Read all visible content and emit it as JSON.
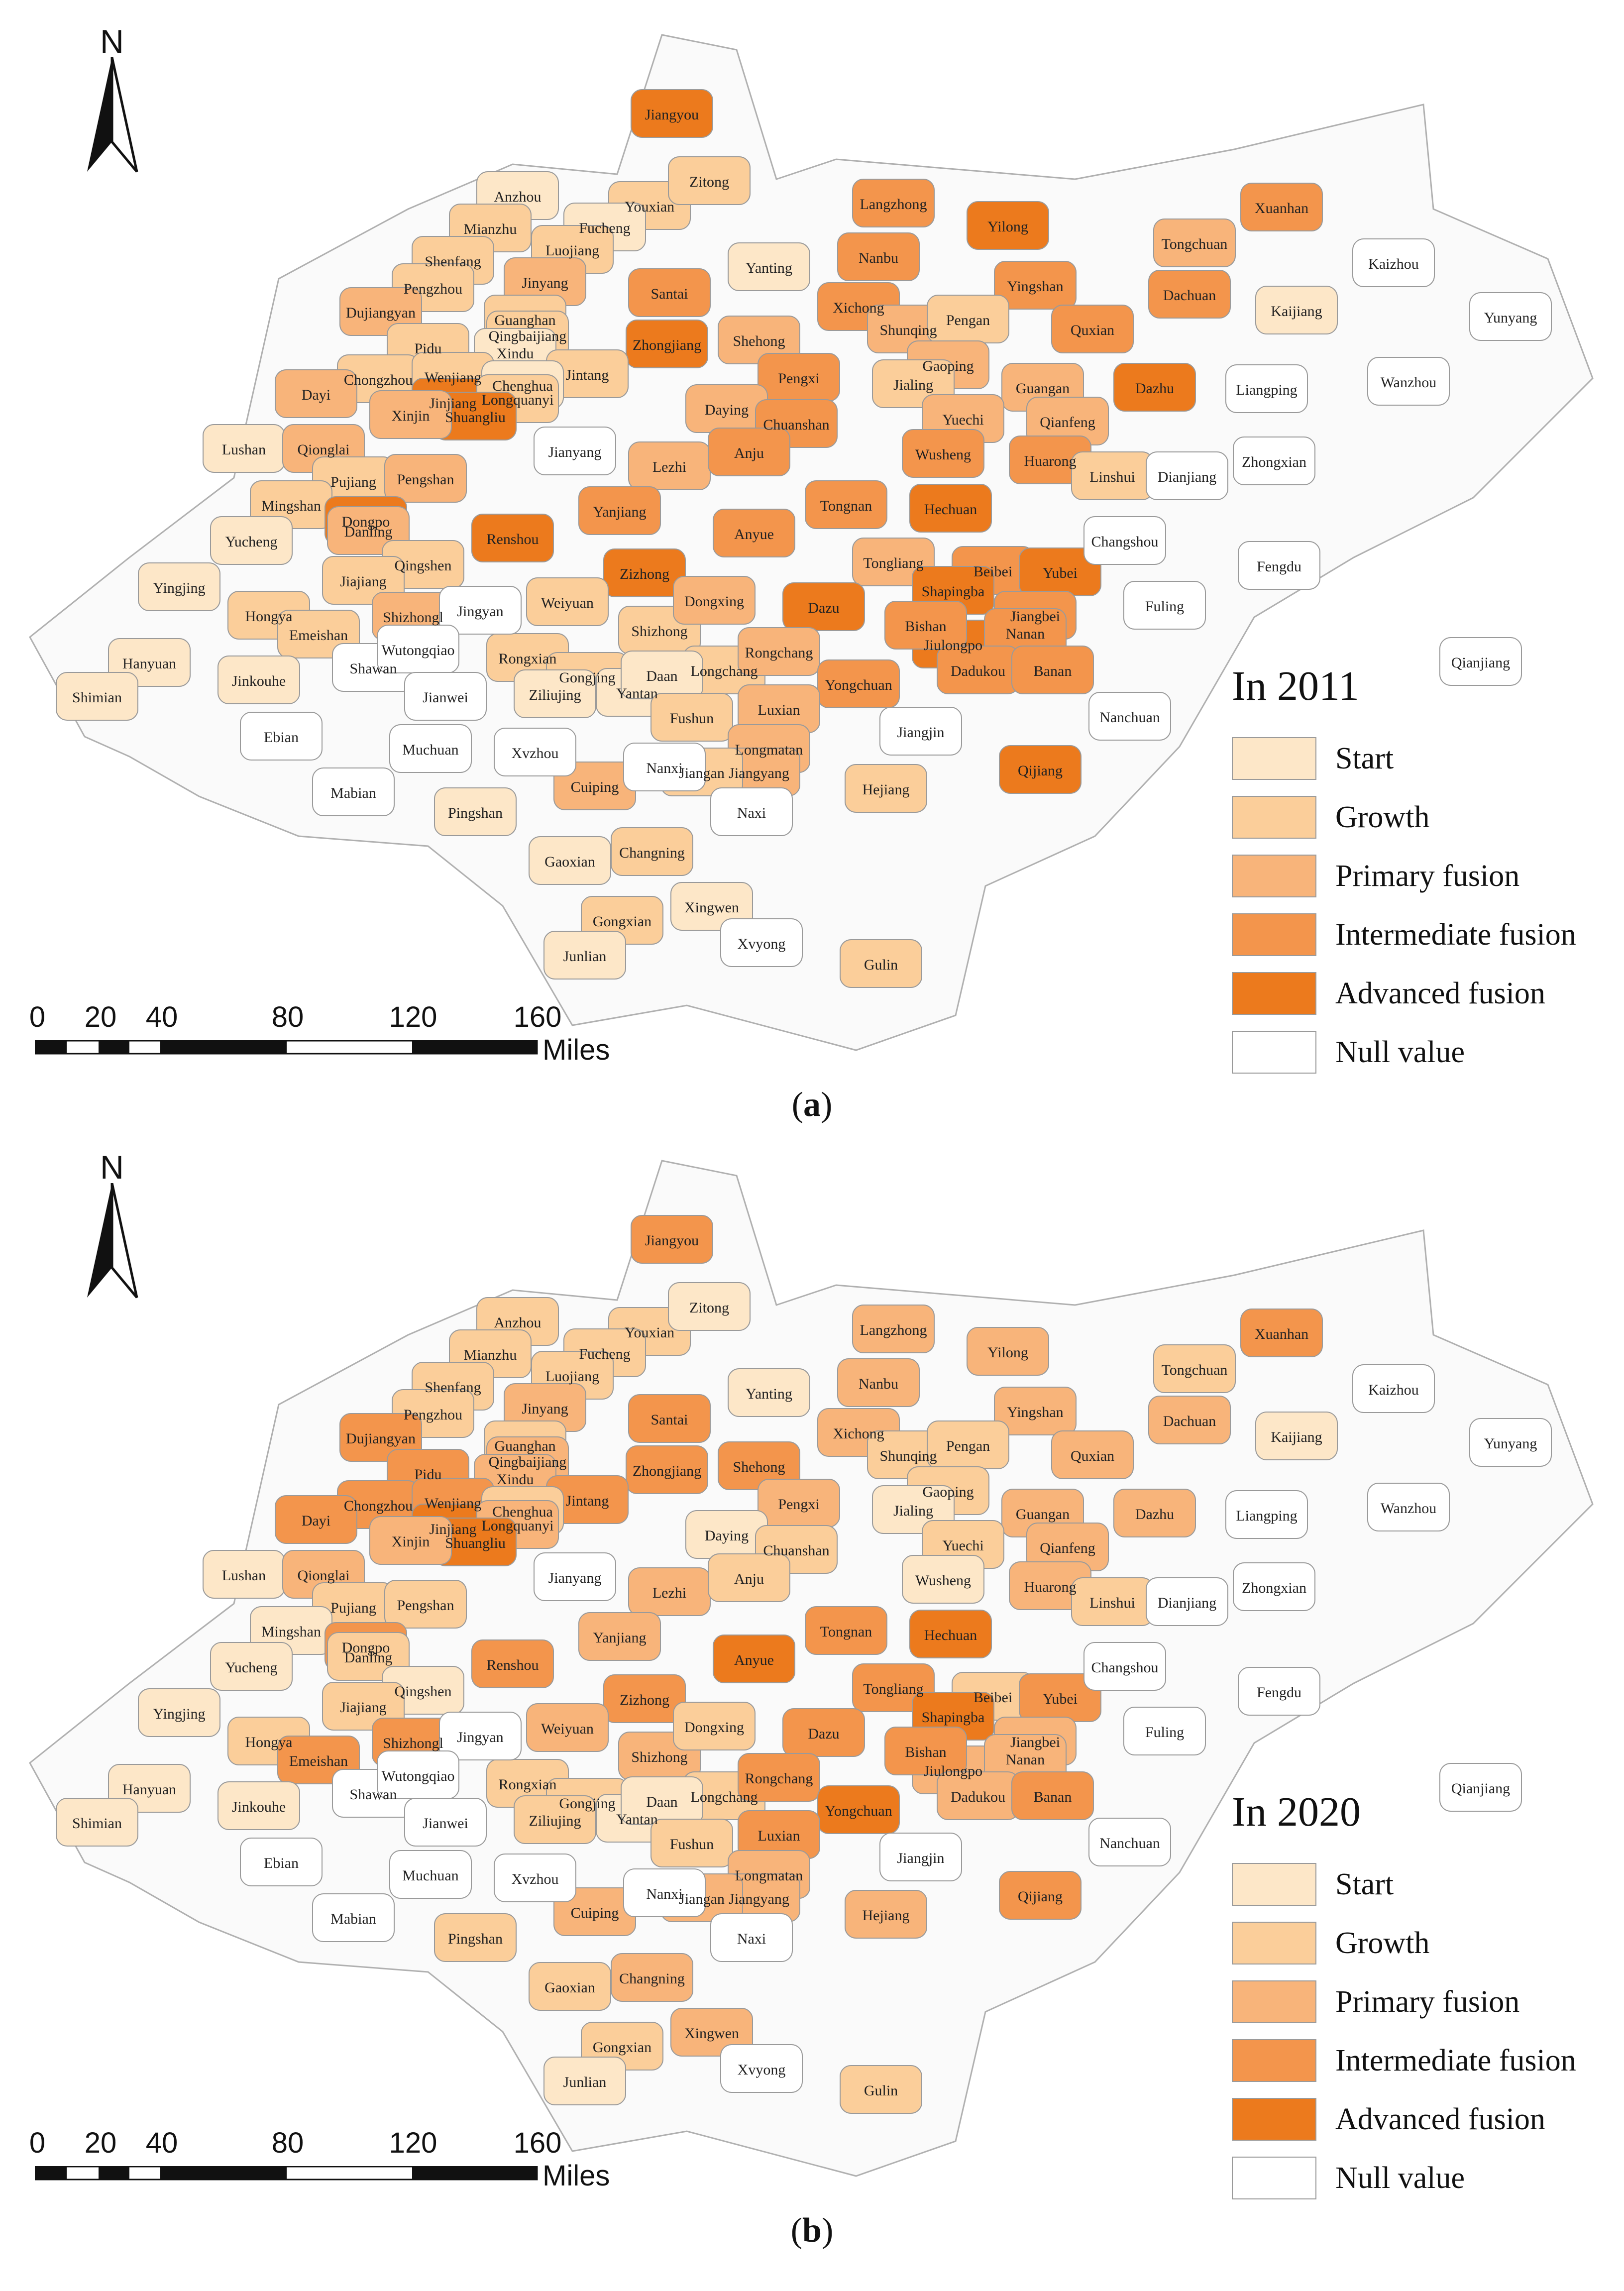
{
  "north_label": "N",
  "scale": {
    "ticks": [
      "0",
      "20",
      "40",
      "80",
      "120",
      "160"
    ],
    "unit": "Miles"
  },
  "legend": {
    "items": [
      {
        "label": "Start",
        "color": "#FDE7C8"
      },
      {
        "label": "Growth",
        "color": "#FBCE9A"
      },
      {
        "label": "Primary fusion",
        "color": "#F8B47A"
      },
      {
        "label": "Intermediate fusion",
        "color": "#F3954C"
      },
      {
        "label": "Advanced fusion",
        "color": "#EC7A1D"
      },
      {
        "label": "Null value",
        "color": "#FFFFFF"
      }
    ]
  },
  "panels": [
    {
      "caption_letter": "a",
      "legend_title": "In 2011",
      "regions": {
        "Jiangyou": 4,
        "Anzhou": 0,
        "Youxian": 1,
        "Zitong": 1,
        "Mianzhu": 1,
        "Fucheng": 0,
        "Luojiang": 1,
        "Shenfang": 1,
        "Yanting": 0,
        "Langzhong": 3,
        "Yilong": 4,
        "Nanbu": 3,
        "Xuanhan": 3,
        "Tongchuan": 2,
        "Kaijiang": 0,
        "Pengzhou": 1,
        "Jinyang": 2,
        "Santai": 3,
        "Xichong": 3,
        "Yingshan": 3,
        "Dachuan": 3,
        "Dujiangyan": 2,
        "Guanghan": 1,
        "Qingbaijiang": 1,
        "Zhongjiang": 4,
        "Shehong": 2,
        "Shunqing": 2,
        "Pengan": 1,
        "Quxian": 3,
        "Pidu": 1,
        "Xindu": 0,
        "Jintang": 1,
        "Gaoping": 2,
        "Dazhu": 4,
        "Chongzhou": 1,
        "Wenjiang": 1,
        "Chenghua": 0,
        "Pengxi": 3,
        "Jialing": 1,
        "Guangan": 2,
        "Dayi": 2,
        "Jinjiang": 4,
        "Longquanyi": 1,
        "Daying": 2,
        "Yuechi": 2,
        "Shuangliu": 4,
        "Xinjin": 2,
        "Chuanshan": 3,
        "Qianfeng": 2,
        "Lushan": 0,
        "Qionglai": 2,
        "Lezhi": 2,
        "Anju": 3,
        "Wusheng": 3,
        "Huarong": 3,
        "Linshui": 1,
        "Pujiang": 1,
        "Pengshan": 2,
        "Mingshan": 1,
        "Dongpo": 4,
        "Renshou": 4,
        "Yanjiang": 3,
        "Anyue": 3,
        "Tongnan": 3,
        "Hechuan": 4,
        "Danling": 2,
        "Yucheng": 0,
        "Qingshen": 1,
        "Tongliang": 2,
        "Beibei": 3,
        "Yubei": 4,
        "Yingjing": 0,
        "Jiajiang": 1,
        "Zizhong": 4,
        "Dazu": 4,
        "Shapingba": 4,
        "Hongya": 1,
        "Shizhong": 1,
        "Shizhong2": 2,
        "Weiyuan": 1,
        "Dongxing": 2,
        "Jiangbei": 3,
        "Jiulongpo": 4,
        "Emeishan": 1,
        "Bishan": 3,
        "Nanan": 3,
        "Dadukou": 3,
        "Hanyuan": 0,
        "Jinkouhe": 0,
        "Rongxian": 1,
        "Gongjing": 1,
        "Ziliujing": 0,
        "Longchang": 1,
        "Rongchang": 2,
        "Yongchuan": 3,
        "Banan": 3,
        "Shimian": 0,
        "Yantan": 0,
        "Daan": 0,
        "Luxian": 2,
        "Fushun": 1,
        "Longmatan": 2,
        "Jiangyang": 2,
        "Qijiang": 4,
        "Cuiping": 2,
        "Hejiang": 1,
        "Pingshan": 0,
        "Jiangan": 1,
        "Changning": 1,
        "Gaoxian": 0,
        "Xingwen": 0,
        "Gongxian": 1,
        "Junlian": 0,
        "Gulin": 1,
        "Jianyang": -1,
        "Jingyan": -1,
        "Shawan": -1,
        "Wutongqiao": -1,
        "Jianwei": -1,
        "Ebian": -1,
        "Muchuan": -1,
        "Mabian": -1,
        "Xvzhou": -1,
        "Nanxi": -1,
        "Naxi": -1,
        "Xvyong": -1,
        "Jiangjin": -1,
        "Nanchuan": -1,
        "Fuling": -1,
        "Changshou": -1,
        "Dianjiang": -1,
        "Liangping": -1,
        "Zhongxian": -1,
        "Fengdu": -1,
        "Wanzhou": -1,
        "Kaizhou": -1,
        "Yunyang": -1,
        "Qianjiang": -1
      }
    },
    {
      "caption_letter": "b",
      "legend_title": "In 2020",
      "regions": {
        "Jiangyou": 3,
        "Anzhou": 1,
        "Youxian": 1,
        "Zitong": 0,
        "Mianzhu": 1,
        "Fucheng": 1,
        "Luojiang": 1,
        "Shenfang": 1,
        "Yanting": 0,
        "Langzhong": 2,
        "Yilong": 2,
        "Nanbu": 2,
        "Xuanhan": 3,
        "Tongchuan": 1,
        "Kaijiang": 0,
        "Pengzhou": 1,
        "Jinyang": 2,
        "Santai": 3,
        "Xichong": 2,
        "Yingshan": 2,
        "Dachuan": 2,
        "Dujiangyan": 3,
        "Guanghan": 1,
        "Qingbaijiang": 2,
        "Zhongjiang": 3,
        "Shehong": 3,
        "Shunqing": 1,
        "Pengan": 1,
        "Quxian": 2,
        "Pidu": 3,
        "Xindu": 2,
        "Jintang": 3,
        "Gaoping": 1,
        "Dazhu": 2,
        "Chongzhou": 3,
        "Wenjiang": 3,
        "Chenghua": 1,
        "Pengxi": 2,
        "Jialing": 0,
        "Guangan": 2,
        "Dayi": 3,
        "Jinjiang": 4,
        "Longquanyi": 2,
        "Daying": 0,
        "Yuechi": 1,
        "Shuangliu": 4,
        "Xinjin": 2,
        "Chuanshan": 1,
        "Qianfeng": 2,
        "Lushan": 0,
        "Qionglai": 2,
        "Lezhi": 2,
        "Anju": 1,
        "Wusheng": 0,
        "Huarong": 2,
        "Linshui": 1,
        "Pujiang": 1,
        "Pengshan": 1,
        "Mingshan": 0,
        "Dongpo": 3,
        "Renshou": 3,
        "Yanjiang": 2,
        "Anyue": 4,
        "Tongnan": 3,
        "Hechuan": 4,
        "Danling": 1,
        "Yucheng": 0,
        "Qingshen": 0,
        "Tongliang": 3,
        "Beibei": 1,
        "Yubei": 3,
        "Yingjing": 0,
        "Jiajiang": 1,
        "Zizhong": 3,
        "Dazu": 3,
        "Shapingba": 4,
        "Hongya": 1,
        "Shizhong": 2,
        "Shizhong2": 3,
        "Weiyuan": 2,
        "Dongxing": 1,
        "Jiangbei": 2,
        "Jiulongpo": 2,
        "Emeishan": 3,
        "Bishan": 3,
        "Nanan": 2,
        "Dadukou": 2,
        "Hanyuan": 0,
        "Jinkouhe": 0,
        "Rongxian": 1,
        "Gongjing": 1,
        "Ziliujing": 1,
        "Longchang": 1,
        "Rongchang": 3,
        "Yongchuan": 4,
        "Banan": 3,
        "Shimian": 0,
        "Yantan": 0,
        "Daan": 0,
        "Luxian": 3,
        "Fushun": 1,
        "Longmatan": 2,
        "Jiangyang": 2,
        "Qijiang": 3,
        "Cuiping": 2,
        "Hejiang": 2,
        "Pingshan": 1,
        "Jiangan": 2,
        "Changning": 2,
        "Gaoxian": 1,
        "Xingwen": 2,
        "Gongxian": 1,
        "Junlian": 0,
        "Gulin": 1,
        "Jianyang": -1,
        "Jingyan": -1,
        "Shawan": -1,
        "Wutongqiao": -1,
        "Jianwei": -1,
        "Ebian": -1,
        "Muchuan": -1,
        "Mabian": -1,
        "Xvzhou": -1,
        "Nanxi": -1,
        "Naxi": -1,
        "Xvyong": -1,
        "Jiangjin": -1,
        "Nanchuan": -1,
        "Fuling": -1,
        "Changshou": -1,
        "Dianjiang": -1,
        "Liangping": -1,
        "Zhongxian": -1,
        "Fengdu": -1,
        "Wanzhou": -1,
        "Kaizhou": -1,
        "Yunyang": -1,
        "Qianjiang": -1
      }
    }
  ]
}
